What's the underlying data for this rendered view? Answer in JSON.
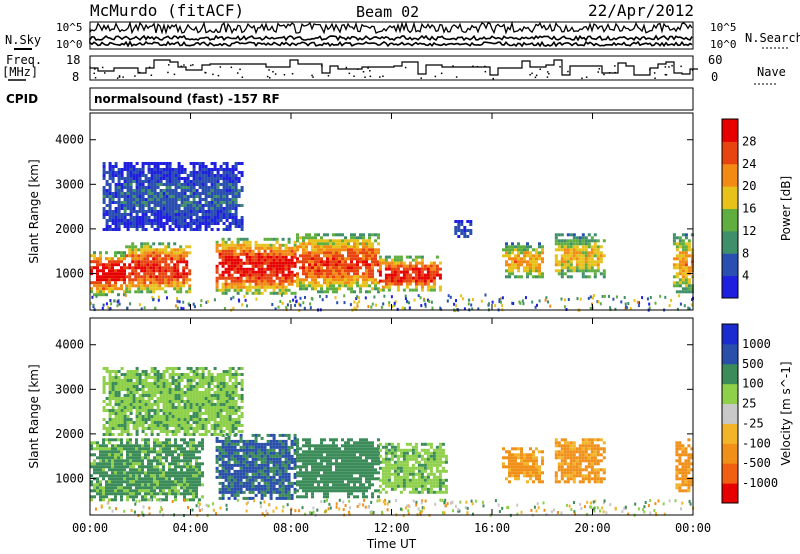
{
  "header": {
    "station": "McMurdo (fitACF)",
    "beam": "Beam 02",
    "date": "22/Apr/2012"
  },
  "left_labels": {
    "nsky": "N.Sky",
    "freq_line1": "Freq.",
    "freq_line2": "[MHz]",
    "cpid": "CPID"
  },
  "right_labels": {
    "nsearch": "N.Search",
    "nave": "Nave"
  },
  "strip_ticks": {
    "noise_top": "10^5",
    "noise_bottom": "10^0",
    "freq_top": "18",
    "freq_bottom": "8",
    "nave_top": "60",
    "nave_bottom": "0"
  },
  "cpid_text": "normalsound (fast) -157 RF",
  "colors": {
    "power_scale": [
      "#1f1fe0",
      "#2a4fb0",
      "#3f8f6a",
      "#5fae3f",
      "#e6c21a",
      "#f28a14",
      "#e8440f",
      "#e60000"
    ],
    "velocity_scale": [
      "#e60000",
      "#f06010",
      "#f09018",
      "#f2b52a",
      "#c8c8c8",
      "#8ed04a",
      "#3c8c5a",
      "#2a4faa",
      "#1a2cd0"
    ]
  },
  "chart_data": [
    {
      "type": "heatmap",
      "title": "",
      "xlabel": "Time UT",
      "ylabel": "Slant Range [km]",
      "xlim": [
        0,
        24
      ],
      "ylim": [
        180,
        4600
      ],
      "x_ticks": [
        "00:00",
        "04:00",
        "08:00",
        "12:00",
        "16:00",
        "20:00",
        "00:00"
      ],
      "y_ticks": [
        "1000",
        "2000",
        "3000",
        "4000"
      ],
      "colorbar": {
        "label": "Power [dB]",
        "ticks": [
          "4",
          "8",
          "12",
          "16",
          "20",
          "24",
          "28"
        ],
        "range": [
          0,
          30
        ]
      },
      "echo_regions": [
        {
          "t": [
            0.0,
            1.4
          ],
          "range": [
            550,
            1500
          ],
          "power": 28
        },
        {
          "t": [
            1.4,
            4.0
          ],
          "range": [
            600,
            1700
          ],
          "power": 26
        },
        {
          "t": [
            5.0,
            8.2
          ],
          "range": [
            550,
            1800
          ],
          "power": 27
        },
        {
          "t": [
            8.2,
            11.5
          ],
          "range": [
            600,
            1900
          ],
          "power": 24
        },
        {
          "t": [
            11.5,
            14.0
          ],
          "range": [
            600,
            1400
          ],
          "power": 26
        },
        {
          "t": [
            14.5,
            15.2
          ],
          "range": [
            1800,
            2200
          ],
          "power": 8
        },
        {
          "t": [
            16.4,
            18.0
          ],
          "range": [
            900,
            1700
          ],
          "power": 20
        },
        {
          "t": [
            18.5,
            20.5
          ],
          "range": [
            900,
            1900
          ],
          "power": 18
        },
        {
          "t": [
            23.2,
            24.0
          ],
          "range": [
            600,
            1900
          ],
          "power": 20
        },
        {
          "t": [
            0.5,
            6.0
          ],
          "range": [
            2000,
            3500
          ],
          "power": 8
        }
      ]
    },
    {
      "type": "heatmap",
      "title": "",
      "xlabel": "Time UT",
      "ylabel": "Slant Range [km]",
      "xlim": [
        0,
        24
      ],
      "ylim": [
        180,
        4600
      ],
      "x_ticks": [
        "00:00",
        "04:00",
        "08:00",
        "12:00",
        "16:00",
        "20:00",
        "00:00"
      ],
      "y_ticks": [
        "1000",
        "2000",
        "3000",
        "4000"
      ],
      "colorbar": {
        "label": "Velocity [m s^-1]",
        "ticks": [
          "-1000",
          "-500",
          "-100",
          "-25",
          "25",
          "100",
          "500",
          "1000"
        ],
        "range": [
          -1000,
          1000
        ]
      },
      "echo_regions": [
        {
          "t": [
            0.0,
            4.5
          ],
          "range": [
            550,
            1900
          ],
          "velocity": 150
        },
        {
          "t": [
            5.0,
            8.2
          ],
          "range": [
            550,
            2000
          ],
          "velocity": 600
        },
        {
          "t": [
            8.2,
            11.5
          ],
          "range": [
            600,
            1900
          ],
          "velocity": 300
        },
        {
          "t": [
            11.5,
            14.2
          ],
          "range": [
            700,
            1800
          ],
          "velocity": 80
        },
        {
          "t": [
            16.4,
            18.0
          ],
          "range": [
            900,
            1700
          ],
          "velocity": -150
        },
        {
          "t": [
            18.5,
            20.5
          ],
          "range": [
            900,
            1900
          ],
          "velocity": -150
        },
        {
          "t": [
            23.3,
            24.0
          ],
          "range": [
            700,
            1900
          ],
          "velocity": -150
        },
        {
          "t": [
            0.5,
            6.0
          ],
          "range": [
            2000,
            3500
          ],
          "velocity": 80
        }
      ]
    }
  ]
}
